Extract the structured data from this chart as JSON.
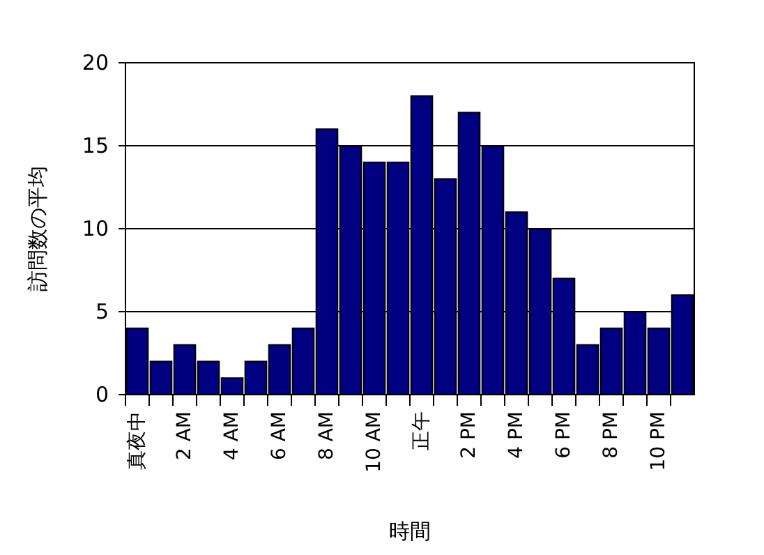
{
  "chart_data": {
    "type": "bar",
    "xlabel": "時間",
    "ylabel": "訪問数の平均",
    "categories": [
      "真夜中",
      null,
      "2 AM",
      null,
      "4 AM",
      null,
      "6 AM",
      null,
      "8 AM",
      null,
      "10 AM",
      null,
      "正午",
      null,
      "2 PM",
      null,
      "4 PM",
      null,
      "6 PM",
      null,
      "8 PM",
      null,
      "10 PM",
      null
    ],
    "values": [
      4,
      2,
      3,
      2,
      1,
      2,
      3,
      4,
      16,
      15,
      14,
      14,
      18,
      13,
      17,
      15,
      11,
      10,
      7,
      3,
      4,
      5,
      4,
      6
    ],
    "color": "#000080",
    "ylim": [
      0,
      20
    ],
    "yticks": [
      0,
      5,
      10,
      15,
      20
    ],
    "grid": "y"
  }
}
